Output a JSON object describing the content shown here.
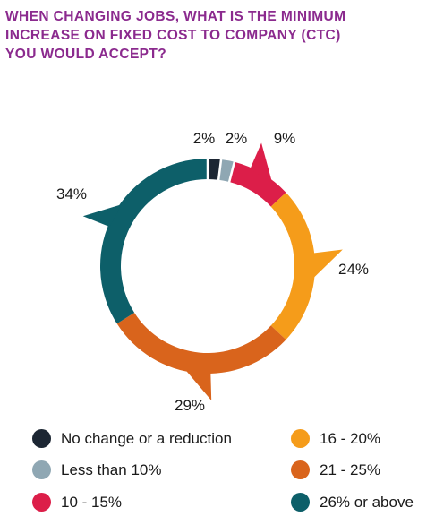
{
  "title_lines": [
    "WHEN CHANGING JOBS, WHAT IS THE MINIMUM",
    "INCREASE ON FIXED COST TO COMPANY (CTC)",
    "YOU WOULD ACCEPT?"
  ],
  "chart_data": {
    "type": "pie",
    "donut": true,
    "title": "WHEN CHANGING JOBS, WHAT IS THE MINIMUM INCREASE ON FIXED COST TO COMPANY (CTC) YOU WOULD ACCEPT?",
    "unit": "%",
    "legend_position": "bottom",
    "slices": [
      {
        "label": "No change or a reduction",
        "value": 2,
        "value_label": "2%",
        "color": "#1c2633"
      },
      {
        "label": "Less than 10%",
        "value": 2,
        "value_label": "2%",
        "color": "#8fa7b3"
      },
      {
        "label": "10 - 15%",
        "value": 9,
        "value_label": "9%",
        "color": "#dc1e49"
      },
      {
        "label": "16 - 20%",
        "value": 24,
        "value_label": "24%",
        "color": "#f59c1a"
      },
      {
        "label": "21 - 25%",
        "value": 29,
        "value_label": "29%",
        "color": "#d9641c"
      },
      {
        "label": "26% or above",
        "value": 34,
        "value_label": "34%",
        "color": "#0d5f69"
      }
    ]
  }
}
